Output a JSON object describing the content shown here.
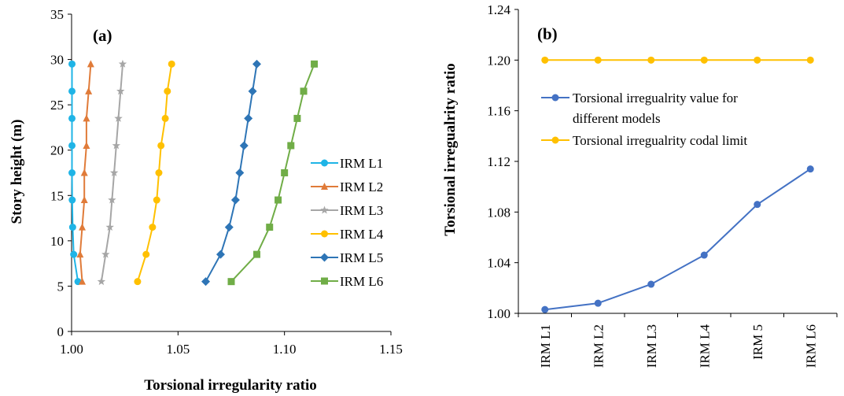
{
  "chart_data": [
    {
      "type": "line",
      "panel_label": "(a)",
      "xlabel": "Torsional  irregularity  ratio",
      "ylabel": "Story height (m)",
      "xlim": [
        1.0,
        1.15
      ],
      "ylim": [
        0,
        35
      ],
      "xticks": [
        "1.00",
        "1.05",
        "1.10",
        "1.15"
      ],
      "yticks": [
        "0",
        "5",
        "10",
        "15",
        "20",
        "25",
        "30",
        "35"
      ],
      "legend_position": "right",
      "y": [
        5.5,
        8.5,
        11.5,
        14.5,
        17.5,
        20.5,
        23.5,
        26.5,
        29.5
      ],
      "series": [
        {
          "name": "IRM L1",
          "color": "#1fb4e6",
          "marker": "circle",
          "x": [
            1.003,
            1.001,
            1.0005,
            1.0003,
            1.0002,
            1.0002,
            1.0002,
            1.0002,
            1.0002
          ]
        },
        {
          "name": "IRM L2",
          "color": "#e07b39",
          "marker": "triangle",
          "x": [
            1.005,
            1.004,
            1.005,
            1.006,
            1.006,
            1.007,
            1.007,
            1.008,
            1.009
          ]
        },
        {
          "name": "IRM L3",
          "color": "#a6a6a6",
          "marker": "star",
          "x": [
            1.014,
            1.016,
            1.018,
            1.019,
            1.02,
            1.021,
            1.022,
            1.023,
            1.024
          ]
        },
        {
          "name": "IRM L4",
          "color": "#ffc000",
          "marker": "circle",
          "x": [
            1.031,
            1.035,
            1.038,
            1.04,
            1.041,
            1.042,
            1.044,
            1.045,
            1.047
          ]
        },
        {
          "name": "IRM L5",
          "color": "#2e75b6",
          "marker": "diamond",
          "x": [
            1.063,
            1.07,
            1.074,
            1.077,
            1.079,
            1.081,
            1.083,
            1.085,
            1.087
          ]
        },
        {
          "name": "IRM L6",
          "color": "#70ad47",
          "marker": "square",
          "x": [
            1.075,
            1.087,
            1.093,
            1.097,
            1.1,
            1.103,
            1.106,
            1.109,
            1.114
          ]
        }
      ]
    },
    {
      "type": "line",
      "panel_label": "(b)",
      "xlabel": "",
      "ylabel": "Torsional  irregualrity  ratio",
      "ylim": [
        1.0,
        1.24
      ],
      "yticks": [
        "1.00",
        "1.04",
        "1.08",
        "1.12",
        "1.16",
        "1.20",
        "1.24"
      ],
      "categories": [
        "IRM L1",
        "IRM L2",
        "IRM L3",
        "IRM L4",
        "IRM 5",
        "IRM L6"
      ],
      "legend_position": "inside-top-left",
      "series": [
        {
          "name": "Torsional irregualrity value for different models",
          "color": "#4472c4",
          "marker": "circle",
          "values": [
            1.003,
            1.008,
            1.023,
            1.046,
            1.086,
            1.114
          ]
        },
        {
          "name": "Torsional irregualrity codal limit",
          "color": "#ffc000",
          "marker": "circle",
          "values": [
            1.2,
            1.2,
            1.2,
            1.2,
            1.2,
            1.2
          ]
        }
      ]
    }
  ],
  "legend_b_lines": [
    [
      "Torsional irregualrity value for",
      "different models"
    ],
    [
      "Torsional irregualrity codal limit"
    ]
  ]
}
